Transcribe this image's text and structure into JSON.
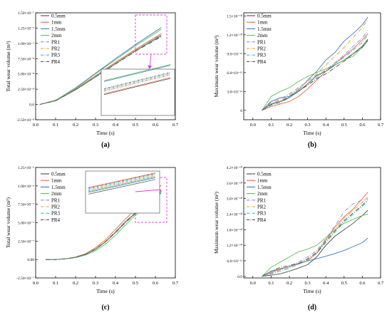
{
  "colors": {
    "0.5mm": "#4a4a4a",
    "1mm": "#f0643c",
    "1.5mm": "#3a78c8",
    "2mm": "#5cbf5c",
    "PR1": "#8a8ae0",
    "PR2": "#f0a020",
    "PR3": "#30c0d0",
    "PR4": "#555555",
    "callout": "#e040e0"
  },
  "chart_data": [
    {
      "type": "line",
      "panel_label": "(a)",
      "xlabel": "Time (s)",
      "ylabel": "Total wear volume (m³)",
      "xlim": [
        0.0,
        0.7
      ],
      "ylim": [
        -2.5e-08,
        1.5e-07
      ],
      "x_ticks": [
        "0.0",
        "0.1",
        "0.2",
        "0.3",
        "0.4",
        "0.5",
        "0.6",
        "0.7"
      ],
      "y_ticks": [
        "-2.50×10⁻⁸",
        "0.0",
        "2.50×10⁻⁸",
        "5.00×10⁻⁸",
        "7.50×10⁻⁸",
        "1.00×10⁻⁷",
        "1.25×10⁻⁷",
        "1.50×10⁻⁷"
      ],
      "legend": [
        "0.5mm",
        "1mm",
        "1.5mm",
        "2mm",
        "PR1",
        "PR2",
        "PR3",
        "PR4"
      ],
      "x": [
        0.02,
        0.1,
        0.2,
        0.3,
        0.4,
        0.5,
        0.63
      ],
      "series": [
        {
          "name": "0.5mm",
          "values": [
            0.0,
            6e-09,
            2.4e-08,
            4.5e-08,
            6.7e-08,
            8.8e-08,
            1.13e-07
          ]
        },
        {
          "name": "1mm",
          "values": [
            0.0,
            6e-09,
            2.5e-08,
            4.7e-08,
            6.9e-08,
            9e-08,
            1.16e-07
          ]
        },
        {
          "name": "1.5mm",
          "values": [
            0.0,
            7e-09,
            2.7e-08,
            5.1e-08,
            7.5e-08,
            9.8e-08,
            1.26e-07
          ]
        },
        {
          "name": "2mm",
          "values": [
            0.0,
            7e-09,
            2.6e-08,
            5e-08,
            7.3e-08,
            9.6e-08,
            1.23e-07
          ]
        },
        {
          "name": "PR1",
          "values": [
            0.0,
            6e-09,
            2.4e-08,
            4.5e-08,
            6.6e-08,
            8.7e-08,
            1.12e-07
          ]
        },
        {
          "name": "PR2",
          "values": [
            0.0,
            6e-09,
            2.5e-08,
            4.6e-08,
            6.8e-08,
            8.9e-08,
            1.15e-07
          ]
        },
        {
          "name": "PR3",
          "values": [
            0.0,
            6e-09,
            2.4e-08,
            4.6e-08,
            6.7e-08,
            8.8e-08,
            1.14e-07
          ]
        },
        {
          "name": "PR4",
          "values": [
            0.0,
            6e-09,
            2.4e-08,
            4.5e-08,
            6.6e-08,
            8.7e-08,
            1.11e-07
          ]
        }
      ],
      "inset": {
        "note": "zoom of region 0.52-0.63 s"
      }
    },
    {
      "type": "line",
      "panel_label": "(b)",
      "xlabel": "Time (s)",
      "ylabel": "Maximum wear volume (m³)",
      "xlim": [
        -0.05,
        0.7
      ],
      "ylim": [
        -1.5e-11,
        1.55e-10
      ],
      "x_ticks": [
        "0.0",
        "0.1",
        "0.2",
        "0.3",
        "0.4",
        "0.5",
        "0.6",
        "0.7"
      ],
      "y_ticks": [
        "0",
        "3.0×10⁻¹¹",
        "6.0×10⁻¹¹",
        "9.0×10⁻¹¹",
        "1.2×10⁻¹⁰",
        "1.5×10⁻¹⁰"
      ],
      "legend": [
        "0.5mm",
        "1mm",
        "1.5mm",
        "2mm",
        "PR1",
        "PR2",
        "PR3",
        "PR4"
      ],
      "x": [
        0.05,
        0.1,
        0.15,
        0.2,
        0.25,
        0.3,
        0.35,
        0.4,
        0.45,
        0.5,
        0.55,
        0.6,
        0.63
      ],
      "series": [
        {
          "name": "0.5mm",
          "values": [
            0.0,
            1e-11,
            1.4e-11,
            2e-11,
            3e-11,
            4.2e-11,
            5.5e-11,
            6.2e-11,
            7.2e-11,
            8e-11,
            9e-11,
            1.02e-10,
            1.13e-10
          ]
        },
        {
          "name": "1mm",
          "values": [
            0.0,
            6e-12,
            1e-11,
            1.4e-11,
            2.2e-11,
            3.4e-11,
            4.8e-11,
            6.2e-11,
            7.4e-11,
            8.6e-11,
            9.8e-11,
            1.12e-10,
            1.22e-10
          ]
        },
        {
          "name": "1.5mm",
          "values": [
            0.0,
            1.4e-11,
            2e-11,
            2.2e-11,
            3.2e-11,
            4.8e-11,
            6.2e-11,
            8e-11,
            9.2e-11,
            1.1e-10,
            1.22e-10,
            1.36e-10,
            1.48e-10
          ]
        },
        {
          "name": "2mm",
          "values": [
            0.0,
            2.2e-11,
            3e-11,
            3.6e-11,
            4.6e-11,
            5.4e-11,
            6e-11,
            6.6e-11,
            7.2e-11,
            8e-11,
            8.6e-11,
            1e-10,
            1.1e-10
          ]
        },
        {
          "name": "PR1",
          "values": [
            0.0,
            1.2e-11,
            1.8e-11,
            2.6e-11,
            3.6e-11,
            4.6e-11,
            5.6e-11,
            6.4e-11,
            7.6e-11,
            8.8e-11,
            1.02e-10,
            1.15e-10,
            1.27e-10
          ]
        },
        {
          "name": "PR2",
          "values": [
            0.0,
            1e-11,
            1.6e-11,
            2.4e-11,
            3.4e-11,
            4.6e-11,
            5.8e-11,
            7.2e-11,
            8.6e-11,
            1e-10,
            1.16e-10,
            1.32e-10,
            1.44e-10
          ]
        },
        {
          "name": "PR3",
          "values": [
            0.0,
            8e-12,
            1.2e-11,
            2e-11,
            3e-11,
            4e-11,
            5.2e-11,
            6.4e-11,
            7.4e-11,
            8.4e-11,
            9.6e-11,
            1.08e-10,
            1.2e-10
          ]
        },
        {
          "name": "PR4",
          "values": [
            0.0,
            9e-12,
            1.4e-11,
            2.2e-11,
            3e-11,
            4e-11,
            5e-11,
            5.8e-11,
            6.8e-11,
            7.8e-11,
            9e-11,
            1e-10,
            1.12e-10
          ]
        }
      ]
    },
    {
      "type": "line",
      "panel_label": "(c)",
      "xlabel": "Time (s)",
      "ylabel": "Total wear volume (m³)",
      "xlim": [
        0.0,
        0.7
      ],
      "ylim": [
        -2.5e-07,
        1.25e-06
      ],
      "x_ticks": [
        "0.0",
        "0.1",
        "0.2",
        "0.3",
        "0.4",
        "0.5",
        "0.6",
        "0.7"
      ],
      "y_ticks": [
        "-2.50×10⁻⁷",
        "0.00",
        "2.50×10⁻⁷",
        "5.00×10⁻⁷",
        "7.50×10⁻⁷",
        "1.00×10⁻⁶",
        "1.25×10⁻⁶"
      ],
      "legend": [
        "0.5mm",
        "1mm",
        "1.5mm",
        "2mm",
        "PR1",
        "PR2",
        "PR3",
        "PR4"
      ],
      "x": [
        0.05,
        0.1,
        0.15,
        0.2,
        0.25,
        0.3,
        0.35,
        0.4,
        0.45,
        0.5,
        0.55,
        0.6,
        0.63
      ],
      "series": [
        {
          "name": "0.5mm",
          "values": [
            0.0,
            0.0,
            1e-08,
            3e-08,
            7e-08,
            1.4e-07,
            2.4e-07,
            3.7e-07,
            5.1e-07,
            6.3e-07,
            7.6e-07,
            8.8e-07,
            9.4e-07
          ]
        },
        {
          "name": "1mm",
          "values": [
            0.0,
            0.0,
            1e-08,
            3.5e-08,
            8e-08,
            1.6e-07,
            2.7e-07,
            4.1e-07,
            5.5e-07,
            6.8e-07,
            8.1e-07,
            9.4e-07,
            1.01e-06
          ]
        },
        {
          "name": "1.5mm",
          "values": [
            0.0,
            0.0,
            1e-08,
            3e-08,
            7e-08,
            1.4e-07,
            2.4e-07,
            3.7e-07,
            5.1e-07,
            6.3e-07,
            7.5e-07,
            8.6e-07,
            9.2e-07
          ]
        },
        {
          "name": "2mm",
          "values": [
            0.0,
            0.0,
            8e-09,
            2.5e-08,
            6e-08,
            1.2e-07,
            2.1e-07,
            3.3e-07,
            4.7e-07,
            6e-07,
            7.2e-07,
            8.4e-07,
            9e-07
          ]
        },
        {
          "name": "PR1",
          "values": [
            0.0,
            0.0,
            1e-08,
            3e-08,
            7e-08,
            1.4e-07,
            2.4e-07,
            3.7e-07,
            5e-07,
            6.2e-07,
            7.4e-07,
            8.5e-07,
            9.1e-07
          ]
        },
        {
          "name": "PR2",
          "values": [
            0.0,
            0.0,
            1e-08,
            3e-08,
            7.5e-08,
            1.5e-07,
            2.5e-07,
            3.8e-07,
            5.2e-07,
            6.4e-07,
            7.6e-07,
            8.7e-07,
            9.3e-07
          ]
        },
        {
          "name": "PR3",
          "values": [
            0.0,
            0.0,
            1e-08,
            3e-08,
            7e-08,
            1.4e-07,
            2.4e-07,
            3.6e-07,
            5e-07,
            6.2e-07,
            7.4e-07,
            8.5e-07,
            9.1e-07
          ]
        },
        {
          "name": "PR4",
          "values": [
            0.0,
            0.0,
            1e-08,
            3e-08,
            7e-08,
            1.4e-07,
            2.4e-07,
            3.7e-07,
            5.1e-07,
            6.3e-07,
            7.5e-07,
            8.6e-07,
            9.2e-07
          ]
        }
      ],
      "inset": {
        "note": "zoom of region 0.52-0.63 s"
      }
    },
    {
      "type": "line",
      "panel_label": "(d)",
      "xlabel": "Time (s)",
      "ylabel": "Maximum wear volume (m³)",
      "xlim": [
        -0.05,
        0.7
      ],
      "ylim": [
        -6e-12,
        4.2e-10
      ],
      "x_ticks": [
        "0.0",
        "0.1",
        "0.2",
        "0.3",
        "0.4",
        "0.5",
        "0.6",
        "0.7"
      ],
      "y_ticks": [
        "0.0",
        "6.0×10⁻¹¹",
        "1.2×10⁻¹⁰",
        "1.8×10⁻¹⁰",
        "2.4×10⁻¹⁰",
        "3.0×10⁻¹⁰",
        "3.6×10⁻¹⁰",
        "4.2×10⁻¹⁰"
      ],
      "legend": [
        "0.5mm",
        "1mm",
        "1.5mm",
        "2mm",
        "PR1",
        "PR2",
        "PR3",
        "PR4"
      ],
      "x": [
        0.05,
        0.1,
        0.15,
        0.2,
        0.25,
        0.3,
        0.35,
        0.4,
        0.45,
        0.5,
        0.55,
        0.6,
        0.63
      ],
      "series": [
        {
          "name": "0.5mm",
          "values": [
            0.0,
            5e-12,
            1e-11,
            2e-11,
            3.2e-11,
            4.5e-11,
            7.5e-11,
            1.2e-10,
            1.55e-10,
            1.8e-10,
            2.05e-10,
            2.35e-10,
            2.55e-10
          ]
        },
        {
          "name": "1mm",
          "values": [
            0.0,
            1.5e-11,
            3e-11,
            3.8e-11,
            4.8e-11,
            6e-11,
            9e-11,
            1.4e-10,
            1.9e-10,
            2.3e-10,
            2.6e-10,
            3e-10,
            3.25e-10
          ]
        },
        {
          "name": "1.5mm",
          "values": [
            0.0,
            2e-11,
            2.8e-11,
            3.8e-11,
            5e-11,
            6e-11,
            6.8e-11,
            7.8e-11,
            8.8e-11,
            1e-10,
            1.15e-10,
            1.3e-10,
            1.48e-10
          ]
        },
        {
          "name": "2mm",
          "values": [
            0.0,
            3.5e-11,
            5.5e-11,
            7.5e-11,
            9.5e-11,
            1.05e-10,
            1.2e-10,
            1.5e-10,
            1.8e-10,
            2.05e-10,
            2.2e-10,
            2.35e-10,
            2.4e-10
          ]
        },
        {
          "name": "PR1",
          "values": [
            0.0,
            1.5e-11,
            2.5e-11,
            4e-11,
            5.5e-11,
            7.5e-11,
            1e-10,
            1.45e-10,
            1.95e-10,
            2.5e-10,
            2.8e-10,
            2.95e-10,
            3e-10
          ]
        },
        {
          "name": "PR2",
          "values": [
            0.0,
            1.2e-11,
            2.5e-11,
            3.5e-11,
            5e-11,
            6.5e-11,
            9.5e-11,
            1.4e-10,
            1.8e-10,
            2.25e-10,
            2.55e-10,
            2.85e-10,
            3.05e-10
          ]
        },
        {
          "name": "PR3",
          "values": [
            0.0,
            1e-11,
            2e-11,
            3.2e-11,
            4.6e-11,
            6.2e-11,
            8.8e-11,
            1.3e-10,
            1.7e-10,
            2.1e-10,
            2.4e-10,
            2.7e-10,
            2.9e-10
          ]
        },
        {
          "name": "PR4",
          "values": [
            0.0,
            2e-11,
            3.5e-11,
            4.2e-11,
            5e-11,
            6.8e-11,
            9.2e-11,
            1.35e-10,
            1.75e-10,
            2.15e-10,
            2.45e-10,
            2.75e-10,
            2.95e-10
          ]
        }
      ]
    }
  ]
}
